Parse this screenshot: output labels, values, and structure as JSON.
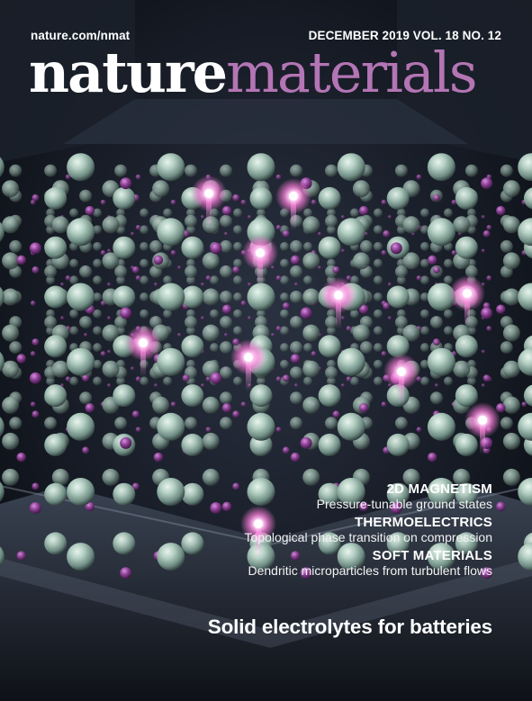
{
  "header": {
    "url": "nature.com/nmat",
    "issue": "DECEMBER 2019 VOL. 18 NO. 12"
  },
  "masthead": {
    "word1": "nature",
    "word2": "materials",
    "color_word1": "#ffffff",
    "color_word2": "#b475b4"
  },
  "teasers": [
    {
      "category": "2D MAGNETISM",
      "description": "Pressure-tunable ground states"
    },
    {
      "category": "THERMOELECTRICS",
      "description": "Topological phase transition on compression"
    },
    {
      "category": "SOFT MATERIALS",
      "description": "Dendritic microparticles from turbulent flows"
    }
  ],
  "cover_line": "Solid electrolytes for batteries",
  "artwork": {
    "subject": "crystal-lattice-illustration",
    "colors": {
      "sphere": "#a9c6b9",
      "small_atom": "#8a3f92",
      "glow": "#ff8ee0",
      "background": "#141821"
    }
  }
}
